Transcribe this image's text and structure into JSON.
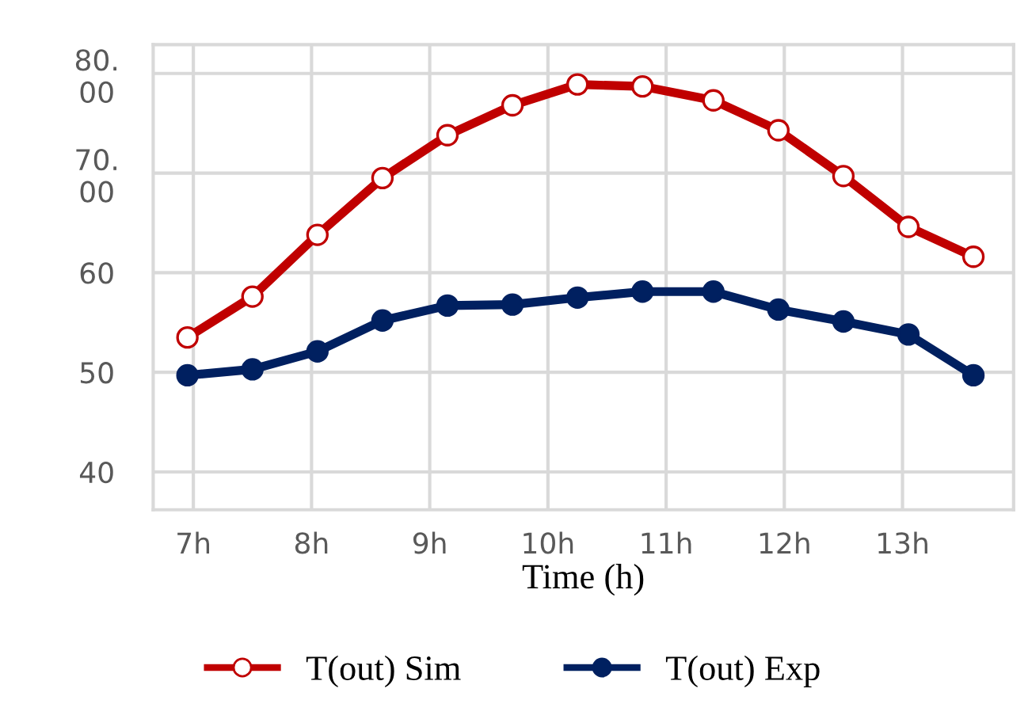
{
  "chart_data": {
    "type": "line",
    "xlabel": "Time (h)",
    "x": [
      6.95,
      7.5,
      8.05,
      8.6,
      9.15,
      9.7,
      10.25,
      10.8,
      11.4,
      11.95,
      12.5,
      13.05,
      13.6
    ],
    "series": [
      {
        "name": "T(out) Sim",
        "color": "#c00000",
        "marker": "circle",
        "values": [
          53.5,
          57.6,
          63.8,
          69.5,
          73.8,
          76.8,
          78.9,
          78.7,
          77.3,
          74.3,
          69.7,
          64.6,
          61.6
        ]
      },
      {
        "name": "T(out) Exp",
        "color": "#002060",
        "marker": "circle",
        "values": [
          49.7,
          50.3,
          52.1,
          55.2,
          56.7,
          56.8,
          57.5,
          58.1,
          58.1,
          56.3,
          55.1,
          53.8,
          49.7
        ]
      }
    ],
    "xlim": [
      6.66,
      13.94
    ],
    "xticks": [
      {
        "value": 7,
        "label": "7h"
      },
      {
        "value": 8,
        "label": "8h"
      },
      {
        "value": 9,
        "label": "9h"
      },
      {
        "value": 10,
        "label": "10h"
      },
      {
        "value": 11,
        "label": "11h"
      },
      {
        "value": 12,
        "label": "12h"
      },
      {
        "value": 13,
        "label": "13h"
      }
    ],
    "ylim": [
      36.2,
      82.9
    ],
    "yticks": [
      40,
      50,
      60,
      {
        "value": 70,
        "label": "70.\n00"
      },
      {
        "value": 80,
        "label": "80.\n00"
      }
    ],
    "grid": true,
    "legend": "bottom",
    "line_style": "solid"
  }
}
